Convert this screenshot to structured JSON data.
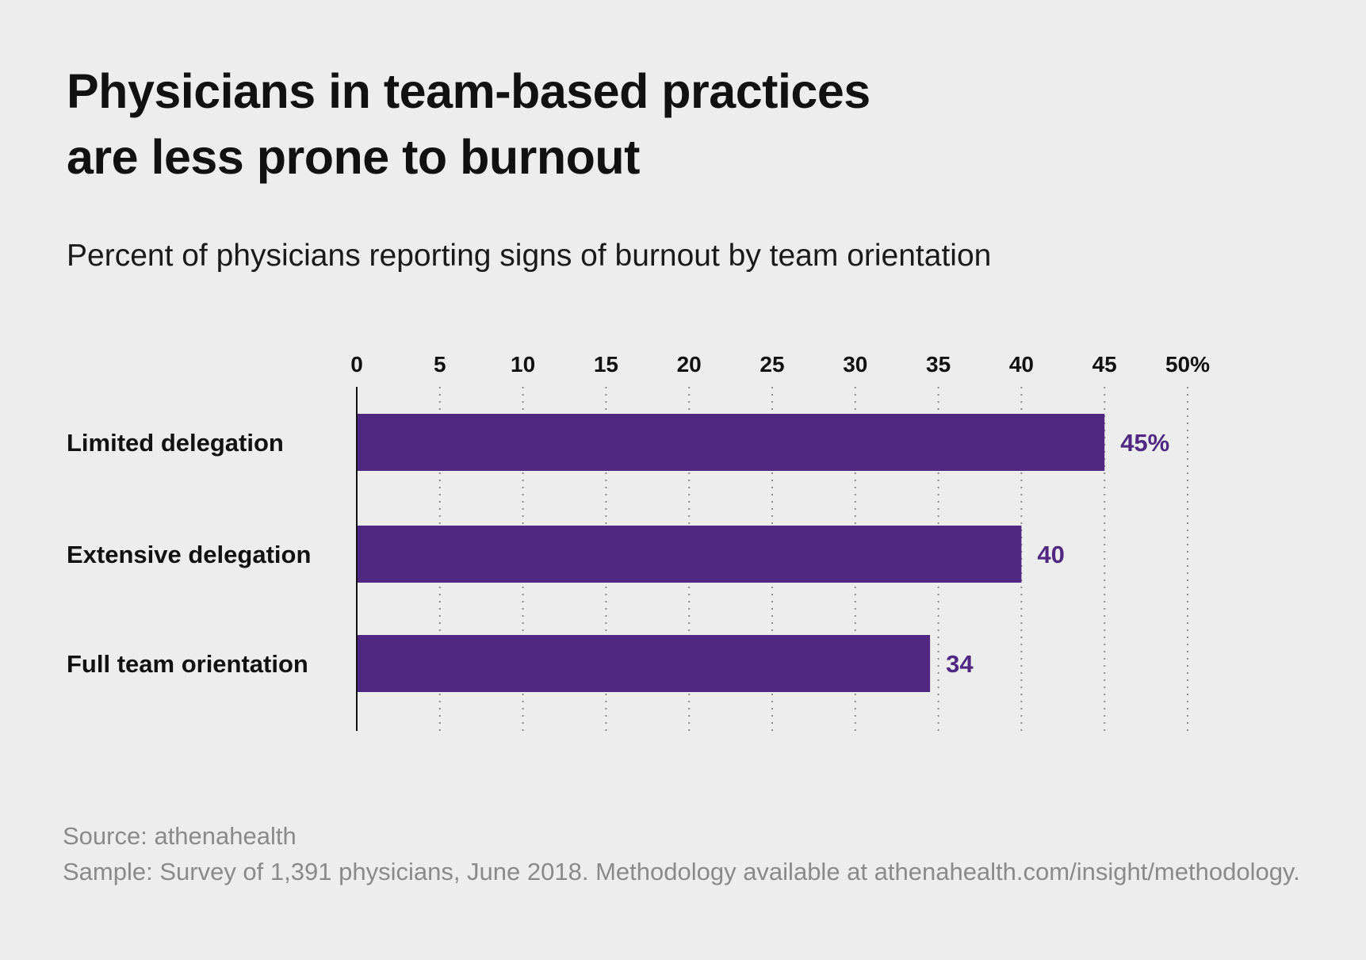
{
  "title_lines": [
    "Physicians in team-based practices",
    "are less prone to burnout"
  ],
  "subtitle": "Percent of physicians reporting signs of burnout by team orientation",
  "source": "Source: athenahealth",
  "sample": "Sample: Survey of 1,391 physicians, June 2018. Methodology available at athenahealth.com/insight/methodology.",
  "colors": {
    "bar": "#502882",
    "value_label": "#502882",
    "background": "#ededed"
  },
  "chart_data": {
    "type": "bar",
    "orientation": "horizontal",
    "categories": [
      "Limited delegation",
      "Extensive delegation",
      "Full team orientation"
    ],
    "values": [
      45,
      40,
      34.5
    ],
    "value_labels": [
      "45%",
      "40",
      "34"
    ],
    "xlim": [
      0,
      50
    ],
    "xticks": [
      0,
      5,
      10,
      15,
      20,
      25,
      30,
      35,
      40,
      45,
      50
    ],
    "xtick_labels": [
      "0",
      "5",
      "10",
      "15",
      "20",
      "25",
      "30",
      "35",
      "40",
      "45",
      "50%"
    ],
    "axis_position": "top",
    "grid": "dotted vertical"
  }
}
